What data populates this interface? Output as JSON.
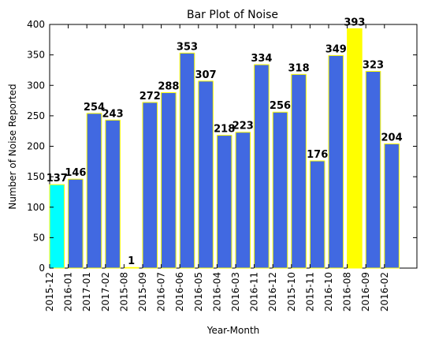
{
  "chart_data": {
    "type": "bar",
    "title": "Bar Plot of Noise",
    "xlabel": "Year-Month",
    "ylabel": "Number of Noise Reported",
    "ylim": [
      0,
      400
    ],
    "yticks": [
      0,
      50,
      100,
      150,
      200,
      250,
      300,
      350,
      400
    ],
    "categories": [
      "2015-12",
      "2016-01",
      "2017-01",
      "2017-02",
      "2015-08",
      "2015-09",
      "2016-07",
      "2016-06",
      "2016-05",
      "2016-04",
      "2016-03",
      "2016-11",
      "2016-12",
      "2015-10",
      "2015-11",
      "2016-10",
      "2016-08",
      "2016-09",
      "2016-02"
    ],
    "values": [
      137,
      146,
      254,
      243,
      1,
      272,
      288,
      353,
      307,
      218,
      223,
      334,
      256,
      318,
      176,
      349,
      393,
      323,
      204
    ],
    "data_labels": [
      "137",
      "146",
      "254",
      "243",
      "1",
      "272",
      "288",
      "353",
      "307",
      "218",
      "223",
      "334",
      "256",
      "318",
      "176",
      "349",
      "393",
      "323",
      "204"
    ],
    "bar_colors": [
      "#00ffff",
      "#4169e1",
      "#4169e1",
      "#4169e1",
      "#4169e1",
      "#4169e1",
      "#4169e1",
      "#4169e1",
      "#4169e1",
      "#4169e1",
      "#4169e1",
      "#4169e1",
      "#4169e1",
      "#4169e1",
      "#4169e1",
      "#4169e1",
      "#ffff00",
      "#4169e1",
      "#4169e1"
    ],
    "bar_edge_color": "#ffff00",
    "grid": false,
    "legend": "none"
  }
}
